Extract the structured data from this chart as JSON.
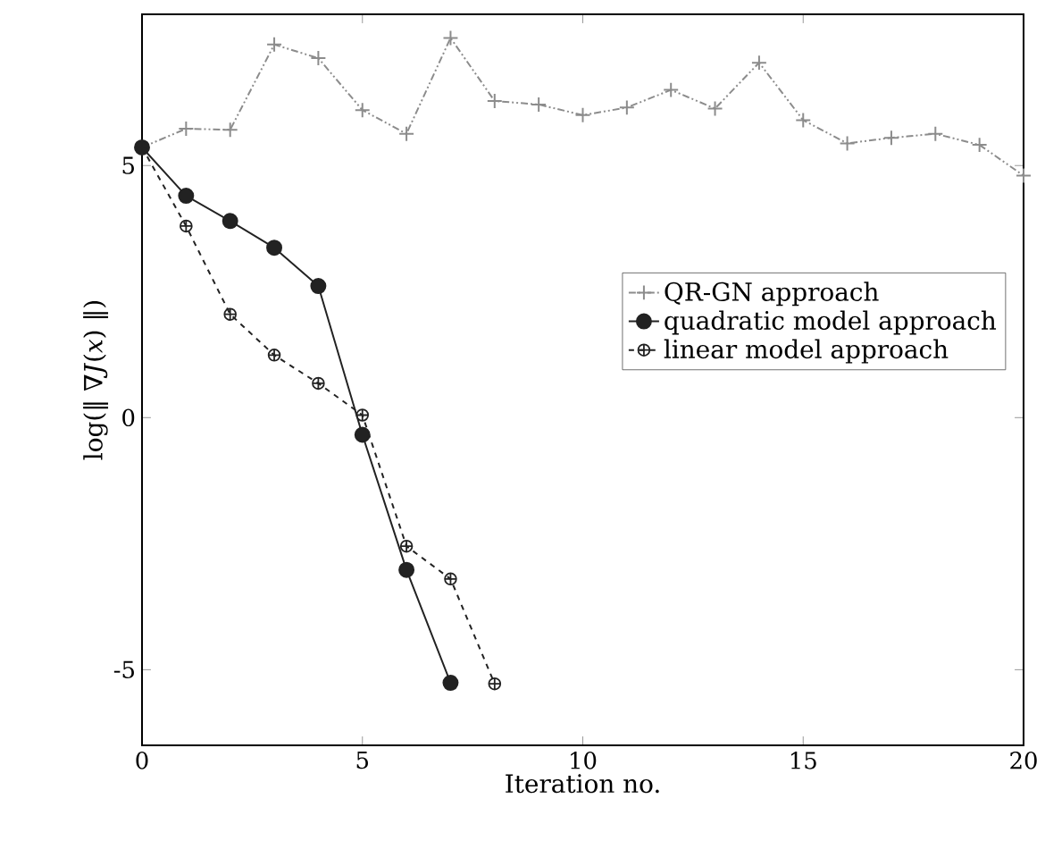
{
  "chart_data": {
    "type": "line",
    "xlabel": "Iteration no.",
    "ylabel": "log(‖ ∇*J*(*x*) ‖)",
    "xlim": [
      0,
      20
    ],
    "ylim": [
      -6.5,
      8
    ],
    "xticks": [
      0,
      5,
      10,
      15,
      20
    ],
    "yticks": [
      -5,
      0,
      5
    ],
    "grid": false,
    "legend": "right",
    "series": [
      {
        "name": "QR-GN approach",
        "color": "#8c8c8c",
        "marker": "cross",
        "line_style": "dashdotdotted",
        "x": [
          0,
          1,
          2,
          3,
          4,
          5,
          6,
          7,
          8,
          9,
          10,
          11,
          12,
          13,
          14,
          15,
          16,
          17,
          18,
          19,
          20
        ],
        "values": [
          5.36,
          5.73,
          5.71,
          7.4,
          7.13,
          6.1,
          5.63,
          7.53,
          6.28,
          6.21,
          6.0,
          6.15,
          6.5,
          6.13,
          7.04,
          5.9,
          5.44,
          5.55,
          5.63,
          5.41,
          4.8
        ]
      },
      {
        "name": "quadratic model approach",
        "color": "#222222",
        "marker": "circle",
        "line_style": "solid",
        "x": [
          0,
          1,
          2,
          3,
          4,
          5,
          6,
          7
        ],
        "values": [
          5.36,
          4.4,
          3.9,
          3.37,
          2.61,
          -0.34,
          -3.02,
          -5.26
        ]
      },
      {
        "name": "linear model approach",
        "color": "#222222",
        "marker": "cross",
        "line_style": "dashed",
        "x": [
          0,
          1,
          2,
          3,
          4,
          5,
          6,
          7,
          8
        ],
        "values": [
          5.36,
          3.8,
          2.05,
          1.24,
          0.68,
          0.05,
          -2.55,
          -3.2,
          -5.28
        ]
      }
    ]
  }
}
